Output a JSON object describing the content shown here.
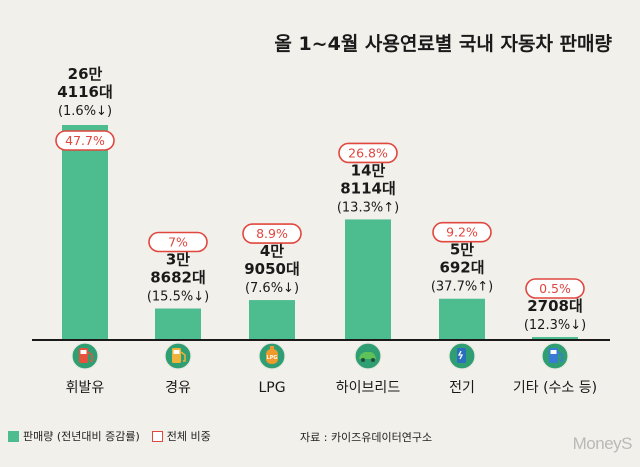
{
  "chart_data": {
    "type": "bar",
    "title": "올 1~4월 사용연료별 국내 자동차 판매량",
    "categories": [
      "휘발유",
      "경유",
      "LPG",
      "하이브리드",
      "전기",
      "기타(수소 등)"
    ],
    "category_labels": [
      "휘발유",
      "경유",
      "LPG",
      "하이브리드",
      "전기",
      "기타 (수소 등)"
    ],
    "icons": [
      "gasoline-pump-icon",
      "diesel-pump-icon",
      "lpg-cylinder-icon",
      "hybrid-car-icon",
      "ev-charger-icon",
      "hydrogen-pump-icon"
    ],
    "values": [
      264116,
      38682,
      49050,
      148114,
      50692,
      2708
    ],
    "value_label_lines": [
      [
        "26만",
        "4116대",
        "(1.6%↓)"
      ],
      [
        "3만",
        "8682대",
        "(15.5%↓)"
      ],
      [
        "4만",
        "9050대",
        "(7.6%↓)"
      ],
      [
        "14만",
        "8114대",
        "(13.3%↑)"
      ],
      [
        "5만",
        "692대",
        "(37.7%↑)"
      ],
      [
        "2708대",
        "(12.3%↓)"
      ]
    ],
    "yoy_change_pct": [
      -1.6,
      -15.5,
      -7.6,
      13.3,
      37.7,
      -12.3
    ],
    "share_labels": [
      "47.7%",
      "7%",
      "8.9%",
      "26.8%",
      "9.2%",
      "0.5%"
    ],
    "share_pct": [
      47.7,
      7,
      8.9,
      26.8,
      9.2,
      0.5
    ],
    "ylim": [
      0,
      264116
    ],
    "colors": {
      "bar": "#4dbd8f",
      "share_border": "#e0473f",
      "baseline": "#1a1a1a",
      "icon_bg": "#2f9e72"
    }
  },
  "legend": {
    "sales": "판매량 (전년대비 증감률)",
    "share": "전체 비중"
  },
  "source": "자료 : 카이즈유데이터연구소",
  "watermark": "MoneyS"
}
